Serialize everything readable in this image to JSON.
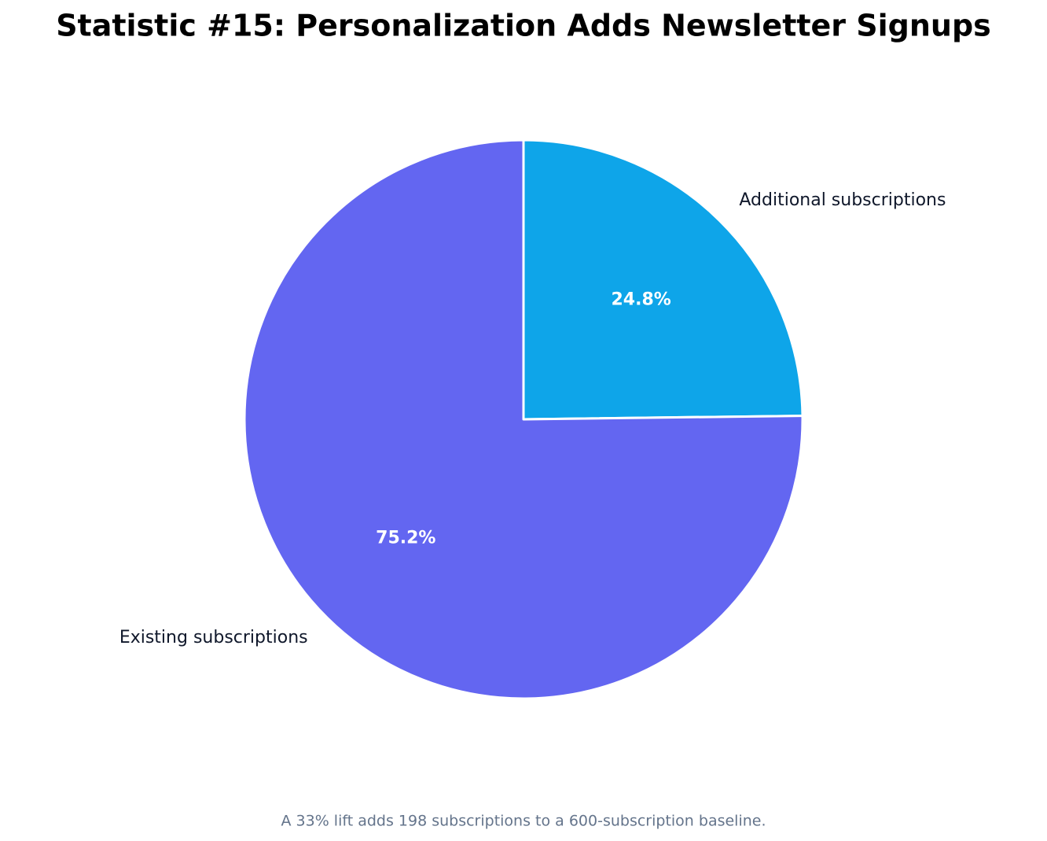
{
  "chart_data": {
    "type": "pie",
    "title": "Statistic #15: Personalization Adds Newsletter Signups",
    "caption": "A 33% lift adds 198 subscriptions to a 600-subscription baseline.",
    "categories": [
      "Additional subscriptions",
      "Existing subscriptions"
    ],
    "values": [
      24.8,
      75.2
    ],
    "value_labels": [
      "24.8%",
      "75.2%"
    ],
    "colors": [
      "#0ea5e9",
      "#6366f1"
    ],
    "start_angle": 90,
    "direction": "clockwise"
  }
}
